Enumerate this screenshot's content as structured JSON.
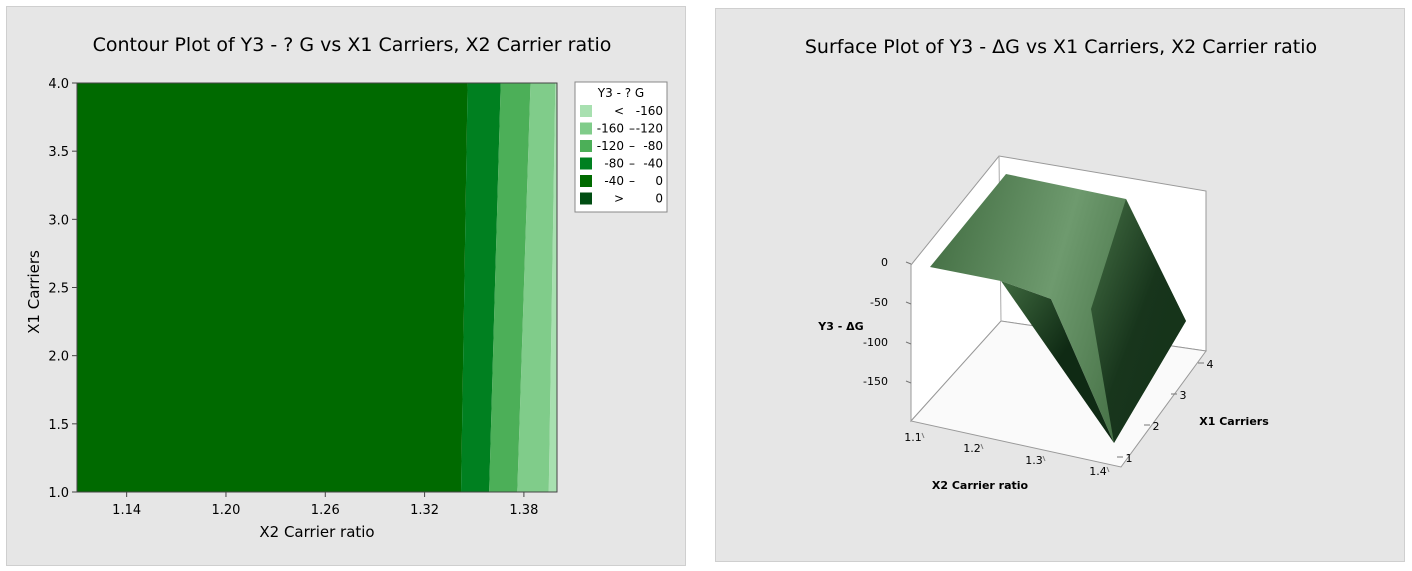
{
  "chart_data": [
    {
      "type": "contour",
      "title": "Contour Plot of Y3 - ? G vs X1 Carriers, X2 Carrier ratio",
      "xlabel": "X2 Carrier ratio",
      "ylabel": "X1 Carriers",
      "xlim": [
        1.11,
        1.4
      ],
      "ylim": [
        1.0,
        4.0
      ],
      "xticks": [
        "1.14",
        "1.20",
        "1.26",
        "1.32",
        "1.38"
      ],
      "yticks": [
        "1.0",
        "1.5",
        "2.0",
        "2.5",
        "3.0",
        "3.5",
        "4.0"
      ],
      "legend": {
        "title": "Y3 - ? G",
        "position": "right",
        "items": [
          {
            "lo": "<",
            "hi": "-160",
            "color": "#a8e0b0"
          },
          {
            "lo": "-160",
            "hi": "-120",
            "color": "#80cc8a"
          },
          {
            "lo": "-120",
            "hi": "-80",
            "color": "#4caf58"
          },
          {
            "lo": "-80",
            "hi": "-40",
            "color": "#008020"
          },
          {
            "lo": "-40",
            "hi": "0",
            "color": "#006a00"
          },
          {
            "lo": ">",
            "hi": "0",
            "color": "#004d12"
          }
        ]
      },
      "contours": [
        {
          "level": -40,
          "at_y1_x": 1.342,
          "at_y4_x": 1.346
        },
        {
          "level": -80,
          "at_y1_x": 1.359,
          "at_y4_x": 1.366
        },
        {
          "level": -120,
          "at_y1_x": 1.376,
          "at_y4_x": 1.384
        },
        {
          "level": -160,
          "at_y1_x": 1.395,
          "at_y4_x": 1.399
        }
      ]
    },
    {
      "type": "surface",
      "title": "Surface Plot of Y3 - ΔG vs X1 Carriers, X2 Carrier ratio",
      "xlabel": "X2 Carrier ratio",
      "ylabel": "X1 Carriers",
      "zlabel": "Y3 - ΔG",
      "xticks": [
        "1.1",
        "1.2",
        "1.3",
        "1.4"
      ],
      "yticks": [
        "1",
        "2",
        "3",
        "4"
      ],
      "zticks": [
        "0",
        "-50",
        "-100",
        "-150"
      ],
      "colors": {
        "light": "#6e9a6e",
        "mid": "#3f6a3f",
        "dark": "#0f2a14"
      }
    }
  ]
}
